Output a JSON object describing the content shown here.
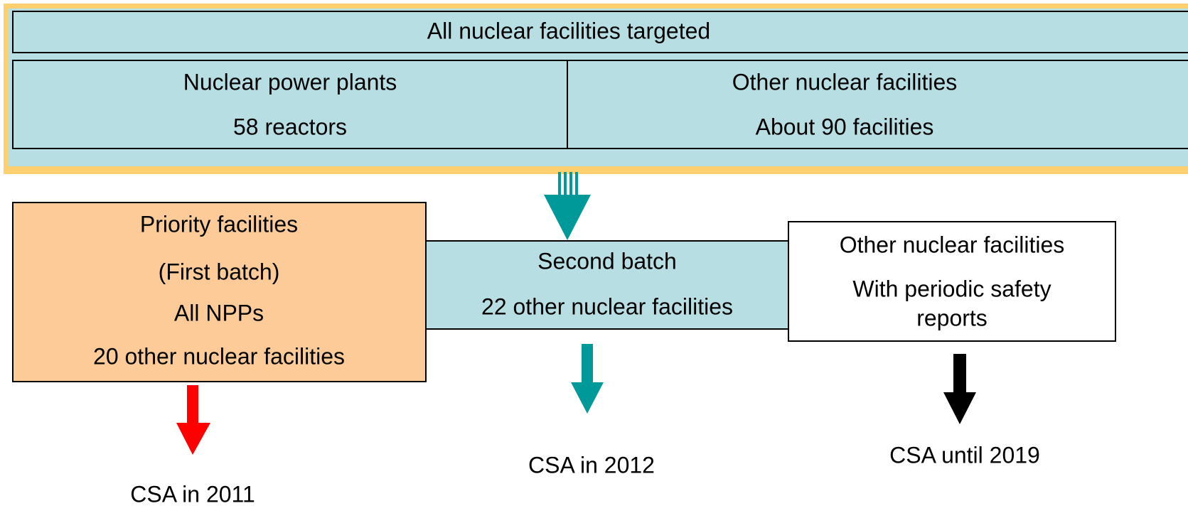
{
  "top": {
    "title": "All nuclear facilities targeted",
    "left": {
      "title": "Nuclear power plants",
      "detail": "58 reactors"
    },
    "right": {
      "title": "Other nuclear facilities",
      "detail": "About 90 facilities"
    }
  },
  "boxes": [
    {
      "lines": [
        "Priority facilities",
        "(First batch)",
        "All NPPs",
        "20 other nuclear facilities"
      ],
      "outcome": "CSA in 2011"
    },
    {
      "lines": [
        "Second batch",
        "22 other nuclear facilities"
      ],
      "outcome": "CSA in 2012"
    },
    {
      "lines": [
        "Other nuclear facilities",
        "With periodic safety",
        "reports"
      ],
      "outcome": "CSA until 2019"
    }
  ]
}
